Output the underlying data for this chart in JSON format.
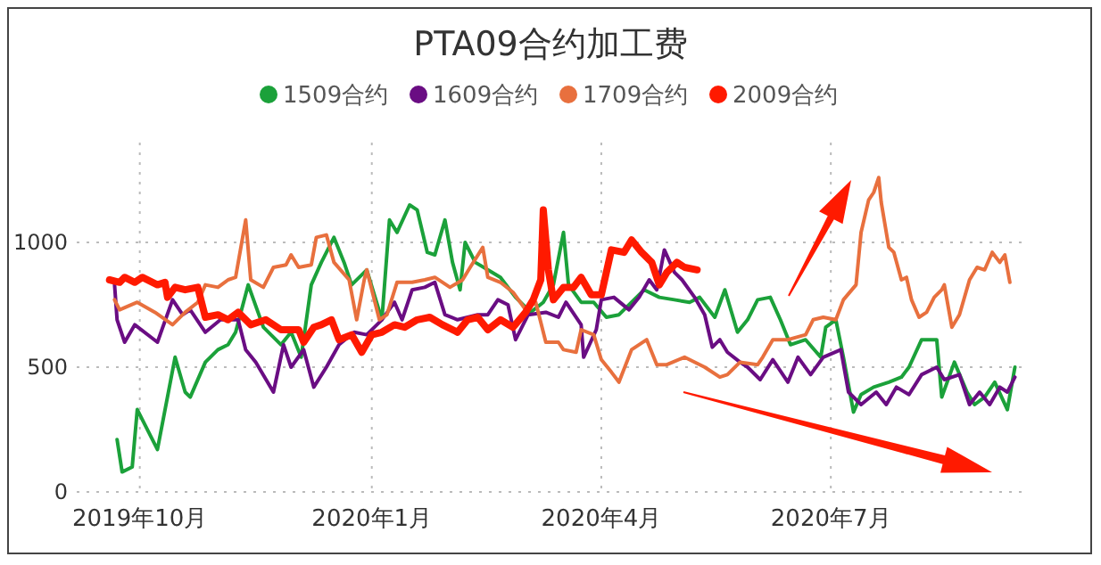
{
  "chart_data": {
    "type": "line",
    "title": "PTA09合约加工费",
    "xlim": [
      "2019-09-06",
      "2020-09-15"
    ],
    "xticks": [
      {
        "value": "2019-10-01",
        "label": "2019年10月"
      },
      {
        "value": "2020-01-01",
        "label": "2020年1月"
      },
      {
        "value": "2020-04-01",
        "label": "2020年4月"
      },
      {
        "value": "2020-07-01",
        "label": "2020年7月"
      }
    ],
    "ylim": [
      0,
      1400
    ],
    "yticks": [
      0,
      500,
      1000
    ],
    "grid": true,
    "legend": "top",
    "line_style": "solid",
    "marker": "none",
    "series": [
      {
        "name": "1509合约",
        "color": "#1ba13a",
        "x": [
          "2019-09-22",
          "2019-09-24",
          "2019-09-28",
          "2019-09-30",
          "2019-10-08",
          "2019-10-15",
          "2019-10-19",
          "2019-10-21",
          "2019-10-27",
          "2019-11-01",
          "2019-11-05",
          "2019-11-08",
          "2019-11-13",
          "2019-11-19",
          "2019-11-26",
          "2019-11-30",
          "2019-12-04",
          "2019-12-08",
          "2019-12-12",
          "2019-12-17",
          "2019-12-21",
          "2019-12-24",
          "2019-12-30",
          "2020-01-05",
          "2020-01-08",
          "2020-01-11",
          "2020-01-16",
          "2020-01-19",
          "2020-01-23",
          "2020-01-26",
          "2020-01-30",
          "2020-02-02",
          "2020-02-05",
          "2020-02-07",
          "2020-02-11",
          "2020-02-16",
          "2020-02-21",
          "2020-02-27",
          "2020-03-04",
          "2020-03-09",
          "2020-03-13",
          "2020-03-17",
          "2020-03-19",
          "2020-03-24",
          "2020-03-29",
          "2020-04-03",
          "2020-04-08",
          "2020-04-13",
          "2020-04-18",
          "2020-04-24",
          "2020-04-30",
          "2020-05-06",
          "2020-05-10",
          "2020-05-16",
          "2020-05-20",
          "2020-05-25",
          "2020-05-29",
          "2020-06-02",
          "2020-06-07",
          "2020-06-11",
          "2020-06-15",
          "2020-06-21",
          "2020-06-27",
          "2020-06-29",
          "2020-07-03",
          "2020-07-06",
          "2020-07-10",
          "2020-07-13",
          "2020-07-18",
          "2020-07-24",
          "2020-07-29",
          "2020-08-01",
          "2020-08-06",
          "2020-08-12",
          "2020-08-14",
          "2020-08-19",
          "2020-08-24",
          "2020-08-27",
          "2020-08-31",
          "2020-09-04",
          "2020-09-09",
          "2020-09-12"
        ],
        "values": [
          210,
          80,
          100,
          330,
          170,
          540,
          400,
          380,
          520,
          570,
          590,
          640,
          830,
          660,
          590,
          640,
          540,
          830,
          920,
          1020,
          920,
          830,
          890,
          690,
          1090,
          1040,
          1150,
          1130,
          960,
          950,
          1090,
          920,
          810,
          1000,
          920,
          890,
          860,
          780,
          720,
          760,
          830,
          1040,
          830,
          760,
          760,
          700,
          710,
          760,
          810,
          780,
          770,
          760,
          780,
          700,
          810,
          640,
          690,
          770,
          780,
          690,
          590,
          610,
          540,
          660,
          690,
          540,
          320,
          390,
          420,
          440,
          460,
          500,
          610,
          610,
          380,
          520,
          400,
          350,
          380,
          440,
          330,
          500
        ]
      },
      {
        "name": "1609合约",
        "color": "#6a0d83",
        "x": [
          "2019-09-21",
          "2019-09-22",
          "2019-09-25",
          "2019-09-29",
          "2019-10-08",
          "2019-10-14",
          "2019-10-18",
          "2019-10-21",
          "2019-10-27",
          "2019-11-02",
          "2019-11-09",
          "2019-11-12",
          "2019-11-16",
          "2019-11-23",
          "2019-11-27",
          "2019-11-30",
          "2019-12-05",
          "2019-12-09",
          "2019-12-14",
          "2019-12-19",
          "2019-12-25",
          "2019-12-30",
          "2020-01-05",
          "2020-01-10",
          "2020-01-13",
          "2020-01-17",
          "2020-01-22",
          "2020-01-26",
          "2020-01-30",
          "2020-02-04",
          "2020-02-12",
          "2020-02-16",
          "2020-02-20",
          "2020-02-24",
          "2020-02-27",
          "2020-03-03",
          "2020-03-10",
          "2020-03-15",
          "2020-03-18",
          "2020-03-24",
          "2020-03-25",
          "2020-03-30",
          "2020-04-01",
          "2020-04-06",
          "2020-04-12",
          "2020-04-16",
          "2020-04-20",
          "2020-04-23",
          "2020-04-26",
          "2020-04-30",
          "2020-05-03",
          "2020-05-08",
          "2020-05-12",
          "2020-05-15",
          "2020-05-18",
          "2020-05-21",
          "2020-05-26",
          "2020-05-29",
          "2020-06-03",
          "2020-06-08",
          "2020-06-14",
          "2020-06-18",
          "2020-06-23",
          "2020-06-28",
          "2020-07-05",
          "2020-07-08",
          "2020-07-13",
          "2020-07-19",
          "2020-07-23",
          "2020-07-27",
          "2020-08-01",
          "2020-08-06",
          "2020-08-12",
          "2020-08-15",
          "2020-08-21",
          "2020-08-25",
          "2020-08-29",
          "2020-09-02",
          "2020-09-06",
          "2020-09-09",
          "2020-09-12"
        ],
        "values": [
          830,
          690,
          600,
          670,
          600,
          770,
          710,
          730,
          640,
          690,
          690,
          570,
          520,
          400,
          590,
          500,
          570,
          420,
          500,
          590,
          640,
          630,
          690,
          760,
          690,
          810,
          820,
          840,
          710,
          690,
          710,
          710,
          770,
          750,
          610,
          710,
          720,
          700,
          760,
          670,
          540,
          650,
          770,
          780,
          730,
          780,
          850,
          810,
          970,
          880,
          850,
          780,
          710,
          580,
          610,
          560,
          520,
          500,
          450,
          530,
          440,
          540,
          470,
          540,
          570,
          400,
          350,
          400,
          350,
          420,
          390,
          470,
          500,
          450,
          470,
          350,
          400,
          350,
          420,
          400,
          460
        ]
      },
      {
        "name": "1709合约",
        "color": "#e8703e",
        "x": [
          "2019-09-21",
          "2019-09-23",
          "2019-09-30",
          "2019-10-07",
          "2019-10-14",
          "2019-10-19",
          "2019-10-24",
          "2019-10-27",
          "2019-11-01",
          "2019-11-05",
          "2019-11-08",
          "2019-11-12",
          "2019-11-14",
          "2019-11-19",
          "2019-11-23",
          "2019-11-28",
          "2019-11-30",
          "2019-12-03",
          "2019-12-08",
          "2019-12-10",
          "2019-12-14",
          "2019-12-17",
          "2019-12-23",
          "2019-12-26",
          "2019-12-29",
          "2019-12-30",
          "2020-01-04",
          "2020-01-07",
          "2020-01-11",
          "2020-01-17",
          "2020-01-22",
          "2020-01-26",
          "2020-02-01",
          "2020-02-06",
          "2020-02-09",
          "2020-02-14",
          "2020-02-16",
          "2020-02-21",
          "2020-02-26",
          "2020-03-02",
          "2020-03-06",
          "2020-03-10",
          "2020-03-15",
          "2020-03-17",
          "2020-03-22",
          "2020-03-24",
          "2020-03-29",
          "2020-04-01",
          "2020-04-05",
          "2020-04-08",
          "2020-04-13",
          "2020-04-19",
          "2020-04-23",
          "2020-04-27",
          "2020-05-04",
          "2020-05-12",
          "2020-05-18",
          "2020-05-21",
          "2020-05-26",
          "2020-06-02",
          "2020-06-04",
          "2020-06-08",
          "2020-06-14",
          "2020-06-21",
          "2020-06-24",
          "2020-06-28",
          "2020-07-03",
          "2020-07-06",
          "2020-07-11",
          "2020-07-13",
          "2020-07-16",
          "2020-07-18",
          "2020-07-20",
          "2020-07-21",
          "2020-07-24",
          "2020-07-26",
          "2020-07-29",
          "2020-07-31",
          "2020-08-02",
          "2020-08-05",
          "2020-08-08",
          "2020-08-11",
          "2020-08-14",
          "2020-08-15",
          "2020-08-18",
          "2020-08-21",
          "2020-08-25",
          "2020-08-28",
          "2020-08-31",
          "2020-09-03",
          "2020-09-06",
          "2020-09-08",
          "2020-09-10"
        ],
        "values": [
          770,
          730,
          760,
          720,
          670,
          720,
          760,
          830,
          820,
          850,
          860,
          1090,
          850,
          820,
          900,
          910,
          950,
          900,
          910,
          1020,
          1030,
          920,
          850,
          690,
          850,
          890,
          690,
          710,
          840,
          840,
          850,
          860,
          820,
          850,
          900,
          980,
          860,
          840,
          800,
          730,
          760,
          600,
          600,
          570,
          560,
          650,
          630,
          530,
          480,
          440,
          570,
          610,
          510,
          510,
          540,
          500,
          460,
          470,
          520,
          510,
          540,
          610,
          610,
          630,
          690,
          700,
          690,
          770,
          830,
          1040,
          1170,
          1200,
          1260,
          1160,
          980,
          960,
          850,
          860,
          770,
          700,
          720,
          780,
          810,
          830,
          660,
          710,
          850,
          900,
          890,
          960,
          920,
          950,
          840
        ]
      },
      {
        "name": "2009合约",
        "color": "#ff1a00",
        "x": [
          "2019-09-19",
          "2019-09-23",
          "2019-09-25",
          "2019-09-29",
          "2019-10-02",
          "2019-10-08",
          "2019-10-11",
          "2019-10-12",
          "2019-10-15",
          "2019-10-19",
          "2019-10-24",
          "2019-10-27",
          "2019-11-01",
          "2019-11-05",
          "2019-11-09",
          "2019-11-14",
          "2019-11-20",
          "2019-11-26",
          "2019-12-03",
          "2019-12-05",
          "2019-12-09",
          "2019-12-12",
          "2019-12-16",
          "2019-12-19",
          "2019-12-24",
          "2019-12-28",
          "2020-01-01",
          "2020-01-05",
          "2020-01-10",
          "2020-01-14",
          "2020-01-19",
          "2020-01-24",
          "2020-01-29",
          "2020-02-04",
          "2020-02-08",
          "2020-02-12",
          "2020-02-16",
          "2020-02-21",
          "2020-02-26",
          "2020-03-02",
          "2020-03-05",
          "2020-03-08",
          "2020-03-09",
          "2020-03-11",
          "2020-03-13",
          "2020-03-17",
          "2020-03-21",
          "2020-03-24",
          "2020-03-28",
          "2020-04-01",
          "2020-04-05",
          "2020-04-10",
          "2020-04-13",
          "2020-04-17",
          "2020-04-21",
          "2020-04-24",
          "2020-04-27",
          "2020-05-01",
          "2020-05-04",
          "2020-05-09"
        ],
        "values": [
          850,
          840,
          860,
          840,
          860,
          830,
          840,
          780,
          820,
          810,
          820,
          700,
          710,
          690,
          720,
          670,
          690,
          650,
          650,
          600,
          660,
          670,
          690,
          610,
          630,
          560,
          630,
          640,
          670,
          660,
          690,
          700,
          670,
          640,
          690,
          700,
          650,
          690,
          660,
          720,
          770,
          850,
          1130,
          890,
          770,
          820,
          820,
          860,
          790,
          790,
          970,
          960,
          1010,
          960,
          920,
          830,
          880,
          920,
          900,
          890
        ]
      }
    ]
  }
}
